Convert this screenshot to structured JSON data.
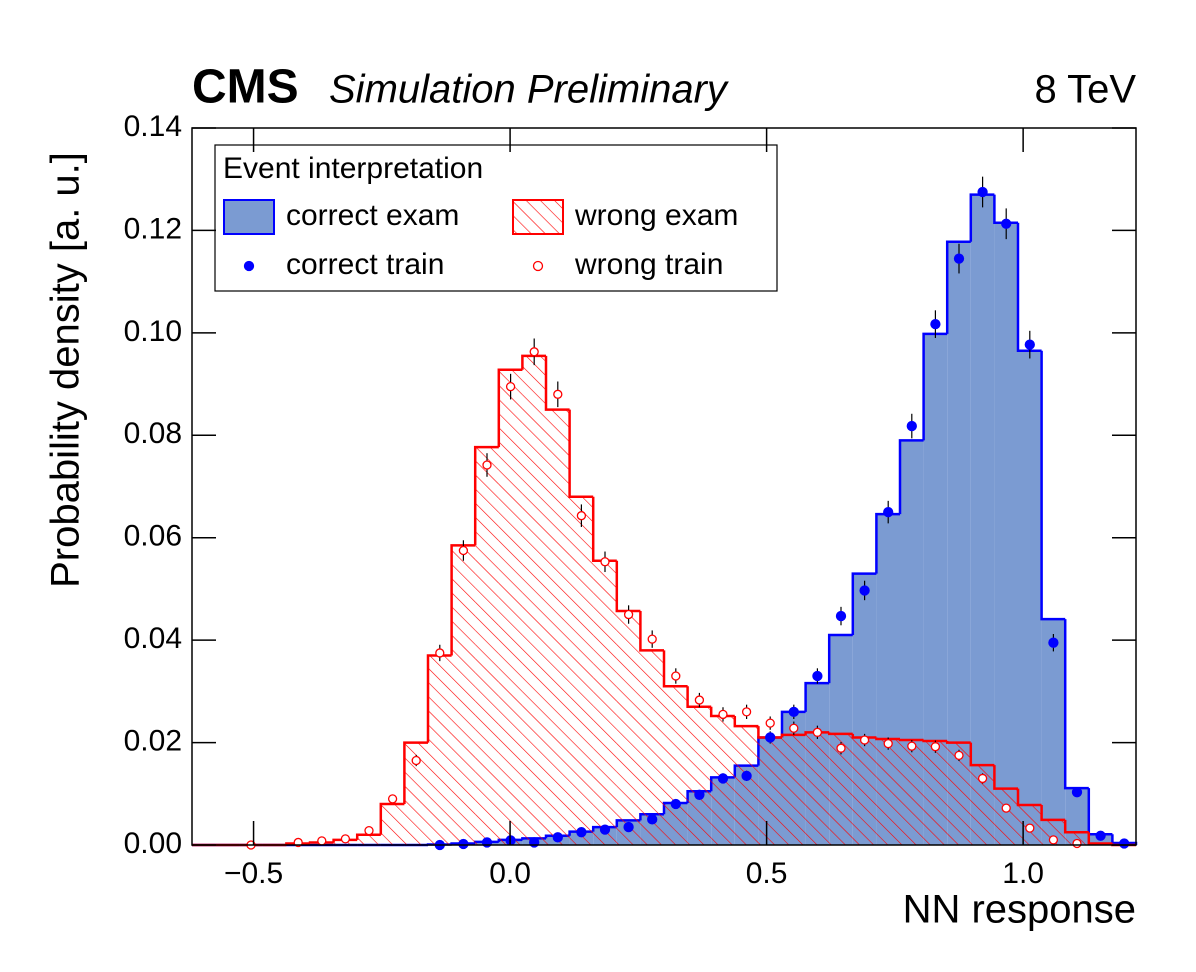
{
  "chart_data": {
    "type": "histogram",
    "experiment": "CMS",
    "status": "Simulation Preliminary",
    "energy": "8 TeV",
    "x_label": "NN response",
    "y_label": "Probability density [a. u.]",
    "legend_title": "Event interpretation",
    "legend_position": "upper left",
    "xlim": [
      -0.62,
      1.22
    ],
    "ylim": [
      0,
      0.14
    ],
    "xticks": [
      {
        "value": -0.5,
        "label": "−0.5"
      },
      {
        "value": 0,
        "label": "0.0"
      },
      {
        "value": 0.5,
        "label": "0.5"
      },
      {
        "value": 1,
        "label": "1.0"
      }
    ],
    "yticks": [
      {
        "value": 0,
        "label": "0.00"
      },
      {
        "value": 0.02,
        "label": "0.02"
      },
      {
        "value": 0.04,
        "label": "0.04"
      },
      {
        "value": 0.06,
        "label": "0.06"
      },
      {
        "value": 0.08,
        "label": "0.08"
      },
      {
        "value": 0.1,
        "label": "0.10"
      },
      {
        "value": 0.12,
        "label": "0.12"
      },
      {
        "value": 0.14,
        "label": "0.14"
      }
    ],
    "bins": [
      -0.62,
      -0.574,
      -0.528,
      -0.482,
      -0.436,
      -0.39,
      -0.344,
      -0.298,
      -0.252,
      -0.206,
      -0.16,
      -0.114,
      -0.068,
      -0.022,
      0.024,
      0.07,
      0.116,
      0.162,
      0.208,
      0.254,
      0.3,
      0.346,
      0.392,
      0.438,
      0.484,
      0.53,
      0.576,
      0.622,
      0.668,
      0.714,
      0.76,
      0.806,
      0.852,
      0.898,
      0.944,
      0.99,
      1.036,
      1.082,
      1.128,
      1.174,
      1.22
    ],
    "series": [
      {
        "name": "correct exam",
        "style": "filled",
        "color": "#0000ff",
        "fill_color": "#7b9bd2",
        "values": [
          0,
          0,
          0,
          0,
          0,
          0,
          0,
          0,
          0,
          0,
          0.0001,
          0.0003,
          0.0006,
          0.001,
          0.0013,
          0.0018,
          0.0026,
          0.0035,
          0.0048,
          0.006,
          0.0082,
          0.0105,
          0.0132,
          0.0155,
          0.021,
          0.026,
          0.0316,
          0.041,
          0.053,
          0.0646,
          0.079,
          0.0998,
          0.1178,
          0.127,
          0.1215,
          0.0965,
          0.0441,
          0.0111,
          0.0021,
          0.0004
        ]
      },
      {
        "name": "wrong exam",
        "style": "hatched",
        "color": "#ff0000",
        "values": [
          0,
          0,
          0,
          0,
          0.0003,
          0.0005,
          0.001,
          0.002,
          0.008,
          0.02,
          0.037,
          0.0585,
          0.0777,
          0.0928,
          0.0955,
          0.085,
          0.068,
          0.0555,
          0.0457,
          0.038,
          0.031,
          0.027,
          0.0252,
          0.0232,
          0.021,
          0.0215,
          0.022,
          0.0217,
          0.021,
          0.0207,
          0.0205,
          0.0203,
          0.02,
          0.0156,
          0.011,
          0.0078,
          0.0049,
          0.0025,
          0.0003,
          0
        ]
      },
      {
        "name": "correct train",
        "style": "points-filled",
        "color": "#0000ff",
        "values": [
          null,
          null,
          null,
          null,
          null,
          null,
          null,
          null,
          null,
          null,
          0,
          0.0002,
          0.0005,
          0.0009,
          0.0005,
          0.0015,
          0.0025,
          0.003,
          0.0035,
          0.005,
          0.008,
          0.0098,
          0.013,
          0.0135,
          0.021,
          0.026,
          0.033,
          0.0447,
          0.0497,
          0.065,
          0.0818,
          0.1017,
          0.1145,
          0.1275,
          0.1213,
          0.0977,
          0.0395,
          0.0103,
          0.0018,
          0.0003
        ],
        "errors": [
          null,
          null,
          null,
          null,
          null,
          null,
          null,
          null,
          null,
          null,
          0,
          0.0001,
          0.0002,
          0.0003,
          0.0002,
          0.0003,
          0.0004,
          0.0005,
          0.0005,
          0.0006,
          0.0008,
          0.0008,
          0.001,
          0.001,
          0.0012,
          0.0014,
          0.0015,
          0.0018,
          0.0019,
          0.0022,
          0.0024,
          0.0027,
          0.0029,
          0.003,
          0.003,
          0.0027,
          0.0017,
          0.0009,
          0.0004,
          0.0001
        ]
      },
      {
        "name": "wrong train",
        "style": "points-open",
        "color": "#ff0000",
        "values": [
          null,
          null,
          0,
          null,
          0.0005,
          0.0008,
          0.0012,
          0.0028,
          0.009,
          0.0165,
          0.0375,
          0.0575,
          0.0742,
          0.0895,
          0.0963,
          0.088,
          0.0643,
          0.0553,
          0.045,
          0.0402,
          0.033,
          0.0283,
          0.0255,
          0.026,
          0.0238,
          0.0228,
          0.022,
          0.0189,
          0.0205,
          0.0198,
          0.0193,
          0.0192,
          0.0175,
          0.013,
          0.0072,
          0.0033,
          0.001,
          0.0003,
          null,
          null
        ],
        "errors": [
          null,
          null,
          0,
          null,
          0.0002,
          0.0002,
          0.0003,
          0.0004,
          0.0008,
          0.0011,
          0.0016,
          0.002,
          0.0023,
          0.0025,
          0.0026,
          0.0025,
          0.0022,
          0.002,
          0.0018,
          0.0017,
          0.0015,
          0.0014,
          0.0014,
          0.0014,
          0.0013,
          0.0013,
          0.0013,
          0.0012,
          0.0012,
          0.0012,
          0.0012,
          0.0012,
          0.0011,
          0.001,
          0.0007,
          0.0005,
          0.0003,
          0.0001,
          null,
          null
        ]
      }
    ]
  }
}
